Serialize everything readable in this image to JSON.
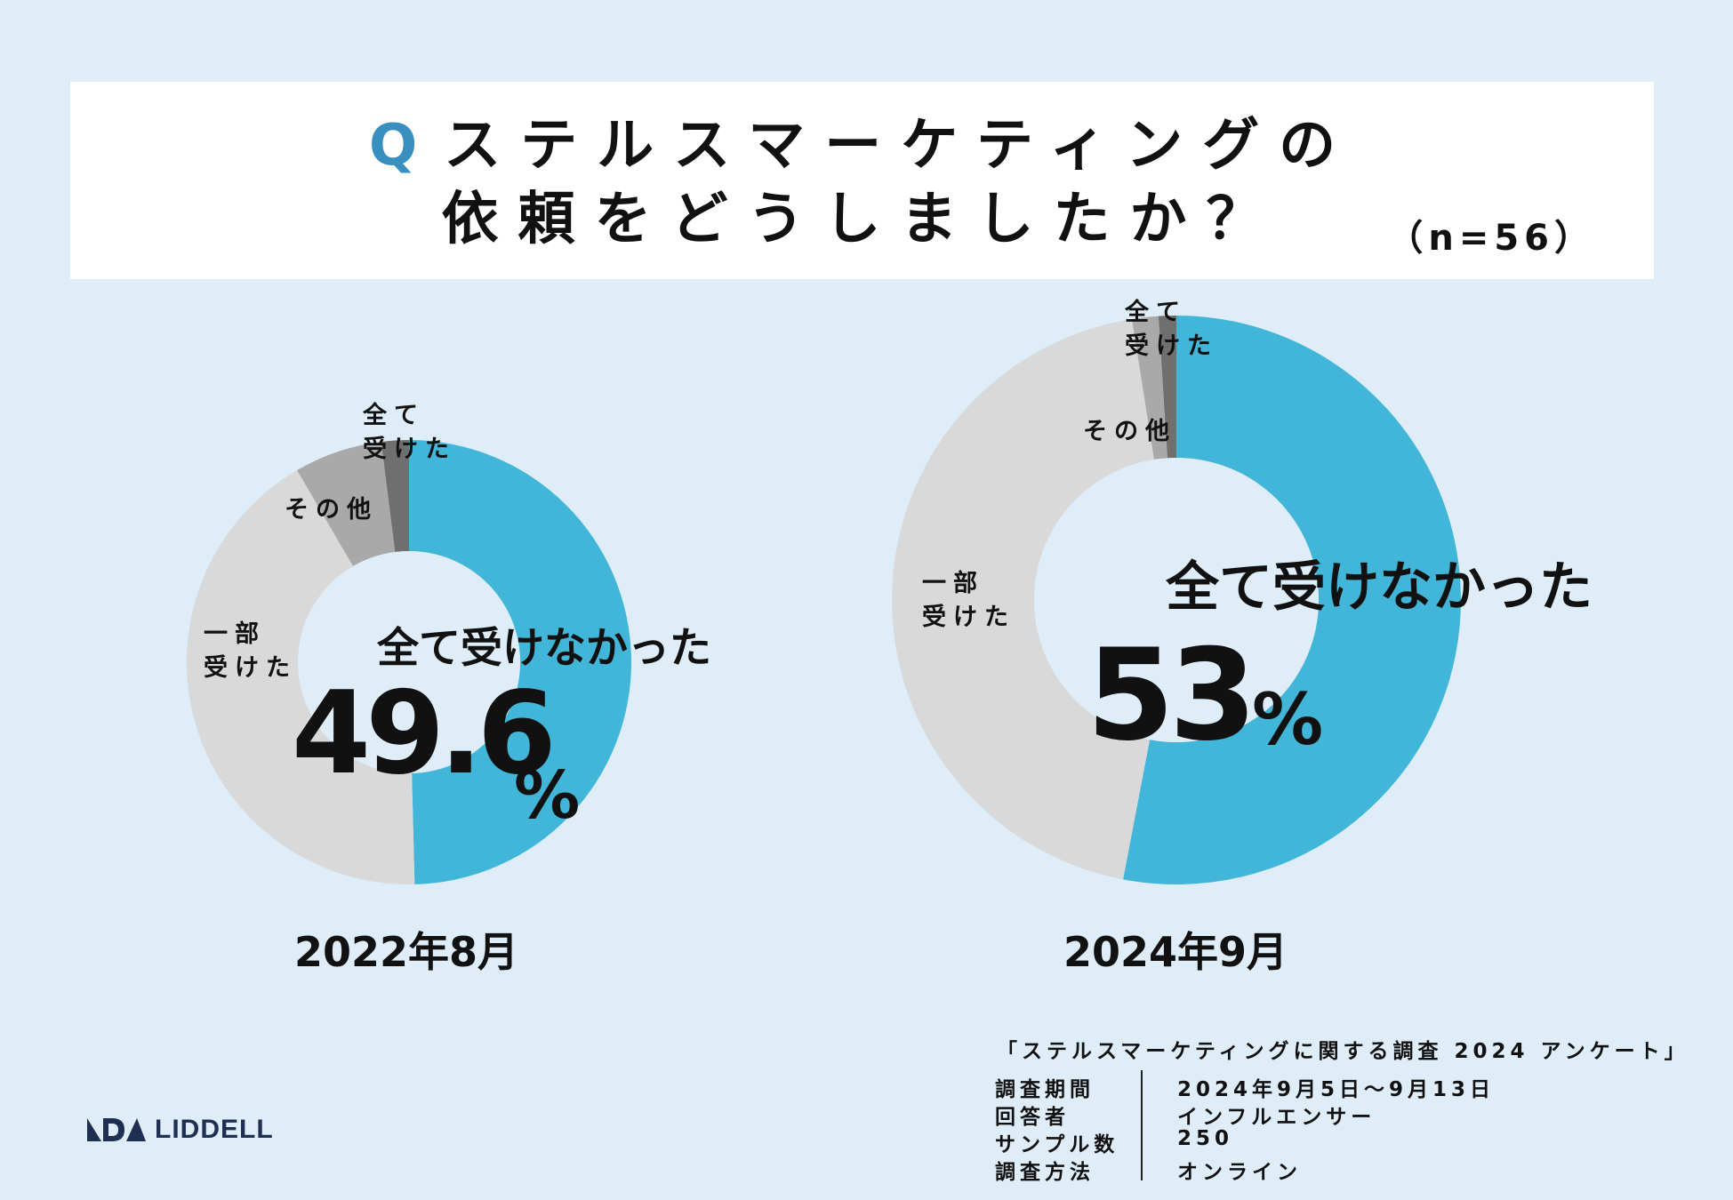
{
  "question": {
    "q_mark": "Q",
    "line1": "ステルスマーケティングの",
    "line2": "依頼をどうしましたか？",
    "n_label": "（n=56）"
  },
  "colors": {
    "not_received": "#41b6d8",
    "partial": "#d9d9d9",
    "other": "#a9a9a9",
    "all_received": "#6f6f6f",
    "background": "#deedf8"
  },
  "chart_data": [
    {
      "type": "pie",
      "donut": true,
      "caption": "2022年8月",
      "headline_label": "全て受けなかった",
      "headline_value": "49.6",
      "headline_unit": "%",
      "slices": [
        {
          "label": "全て受けなかった",
          "value": 49.6
        },
        {
          "label": "一部受けた",
          "value": 42.0
        },
        {
          "label": "その他",
          "value": 6.4
        },
        {
          "label": "全て受けた",
          "value": 2.0
        }
      ],
      "slice_labels": {
        "all_received": "全て\n受けた",
        "other": "その他",
        "partial": "一部\n受けた"
      }
    },
    {
      "type": "pie",
      "donut": true,
      "caption": "2024年9月",
      "headline_label": "全て受けなかった",
      "headline_value": "53",
      "headline_unit": "%",
      "slices": [
        {
          "label": "全て受けなかった",
          "value": 53
        },
        {
          "label": "一部受けた",
          "value": 44.5
        },
        {
          "label": "その他",
          "value": 1.5
        },
        {
          "label": "全て受けた",
          "value": 1.0
        }
      ],
      "slice_labels": {
        "all_received": "全て\n受けた",
        "other": "その他",
        "partial": "一部\n受けた"
      }
    }
  ],
  "survey": {
    "title": "「ステルスマーケティングに関する調査 2024 アンケート」",
    "rows": [
      {
        "key": "調査期間",
        "value": "2024年9月5日～9月13日"
      },
      {
        "key": "回答者",
        "value": "インフルエンサー"
      },
      {
        "key": "サンプル数",
        "value": "250"
      },
      {
        "key": "調査方法",
        "value": "オンライン"
      }
    ]
  },
  "logo": {
    "text": "LIDDELL"
  }
}
